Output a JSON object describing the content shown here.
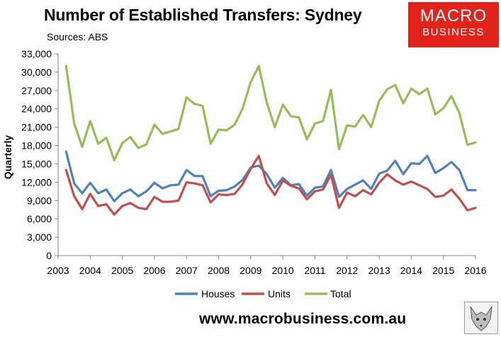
{
  "header": {
    "title": "Number of Established Transfers: Sydney",
    "subtitle": "Sources: ABS"
  },
  "logo": {
    "line1": "MACRO",
    "line2": "BUSINESS",
    "color": "#e1231b"
  },
  "footer": {
    "url": "www.macrobusiness.com.au",
    "mascot_icon": "wolf-icon"
  },
  "chart_data": {
    "type": "line",
    "title": "Number of Established Transfers: Sydney",
    "ylabel": "Quarterly",
    "xlabel": "",
    "ylim": [
      0,
      33000
    ],
    "xlim": [
      2003,
      2016
    ],
    "y_ticks": [
      "0",
      "3,000",
      "6,000",
      "9,000",
      "12,000",
      "15,000",
      "18,000",
      "21,000",
      "24,000",
      "27,000",
      "30,000",
      "33,000"
    ],
    "x_ticks": [
      "2003",
      "2004",
      "2005",
      "2006",
      "2007",
      "2008",
      "2009",
      "2010",
      "2011",
      "2012",
      "2013",
      "2014",
      "2015",
      "2016"
    ],
    "grid": false,
    "legend_position": "bottom",
    "x": [
      2003.25,
      2003.5,
      2003.75,
      2004.0,
      2004.25,
      2004.5,
      2004.75,
      2005.0,
      2005.25,
      2005.5,
      2005.75,
      2006.0,
      2006.25,
      2006.5,
      2006.75,
      2007.0,
      2007.25,
      2007.5,
      2007.75,
      2008.0,
      2008.25,
      2008.5,
      2008.75,
      2009.0,
      2009.25,
      2009.5,
      2009.75,
      2010.0,
      2010.25,
      2010.5,
      2010.75,
      2011.0,
      2011.25,
      2011.5,
      2011.75,
      2012.0,
      2012.25,
      2012.5,
      2012.75,
      2013.0,
      2013.25,
      2013.5,
      2013.75,
      2014.0,
      2014.25,
      2014.5,
      2014.75,
      2015.0,
      2015.25,
      2015.5,
      2015.75,
      2016.0
    ],
    "series": [
      {
        "name": "Houses",
        "color": "#4f81bd",
        "values": [
          17000,
          11800,
          10200,
          11900,
          10200,
          10800,
          8900,
          10200,
          10800,
          9700,
          10500,
          11900,
          11000,
          11500,
          11600,
          14000,
          13000,
          13000,
          9700,
          10600,
          10700,
          11300,
          12400,
          14400,
          14700,
          13300,
          11100,
          12700,
          11500,
          11700,
          9800,
          11100,
          11300,
          14000,
          9600,
          10900,
          11600,
          12300,
          10900,
          13400,
          13900,
          15500,
          13300,
          15100,
          15000,
          16300,
          13500,
          14300,
          15300,
          14000,
          10700,
          10700
        ]
      },
      {
        "name": "Units",
        "color": "#c0504d",
        "values": [
          14000,
          9700,
          7600,
          10100,
          8100,
          8400,
          6700,
          8100,
          8600,
          7800,
          7600,
          9600,
          8800,
          8800,
          9000,
          12000,
          11800,
          11500,
          8700,
          10000,
          9900,
          10100,
          11700,
          14200,
          16300,
          11800,
          9900,
          12300,
          11400,
          11000,
          9200,
          10500,
          10800,
          13200,
          7800,
          10300,
          9700,
          10700,
          10000,
          11900,
          13300,
          12300,
          11600,
          12100,
          11500,
          10900,
          9600,
          9800,
          10800,
          9300,
          7400,
          7800
        ]
      },
      {
        "name": "Total",
        "color": "#9bbb59",
        "values": [
          31000,
          21600,
          17800,
          22000,
          18300,
          19300,
          15600,
          18400,
          19400,
          17600,
          18200,
          21400,
          19900,
          20300,
          20700,
          25900,
          24800,
          24500,
          18300,
          20600,
          20500,
          21400,
          24100,
          28400,
          31000,
          25000,
          21000,
          24700,
          22800,
          22600,
          19000,
          21600,
          22000,
          27100,
          17400,
          21300,
          21100,
          23000,
          21000,
          25300,
          27200,
          27900,
          24900,
          27300,
          26400,
          27300,
          23100,
          24100,
          26100,
          23300,
          18100,
          18500
        ]
      }
    ]
  }
}
